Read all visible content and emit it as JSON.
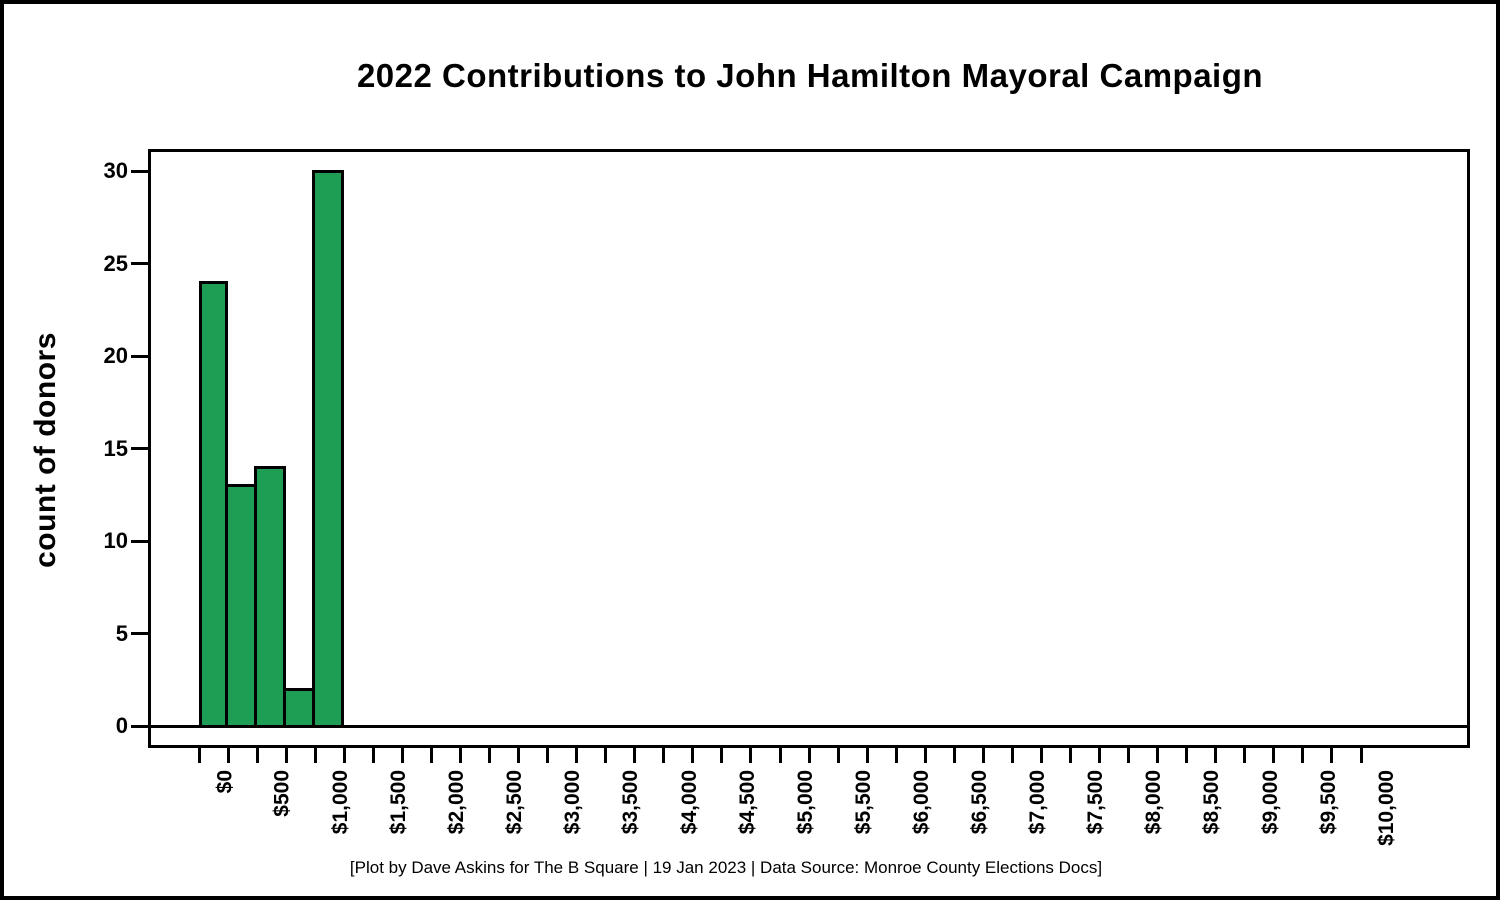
{
  "title": "2022 Contributions to John Hamilton Mayoral Campaign",
  "footer": "[Plot by Dave Askins for The B Square | 19 Jan 2023 | Data Source: Monroe County Elections Docs]",
  "y_axis": {
    "label": "count of donors",
    "ticks": [
      0,
      5,
      10,
      15,
      20,
      25,
      30
    ],
    "tick_labels": [
      "0",
      "5",
      "10",
      "15",
      "20",
      "25",
      "30"
    ]
  },
  "x_axis": {
    "min": 0,
    "max": 10000,
    "tick_step": 250,
    "label_step": 500,
    "labels": [
      "$0",
      "$500",
      "$1,000",
      "$1,500",
      "$2,000",
      "$2,500",
      "$3,000",
      "$3,500",
      "$4,000",
      "$4,500",
      "$5,000",
      "$5,500",
      "$6,000",
      "$6,500",
      "$7,000",
      "$7,500",
      "$8,000",
      "$8,500",
      "$9,000",
      "$9,500",
      "$10,000"
    ]
  },
  "colors": {
    "bar_fill": "#1e9e55",
    "bar_border": "#000000",
    "frame": "#000000",
    "text": "#000000",
    "background": "#ffffff"
  },
  "chart_data": {
    "type": "bar",
    "subtype": "histogram",
    "title": "2022 Contributions to John Hamilton Mayoral Campaign",
    "xlabel": "",
    "ylabel": "count of donors",
    "bin_width_dollars": 250,
    "bins": [
      {
        "range": "$0-$250",
        "count": 24
      },
      {
        "range": "$250-$500",
        "count": 13
      },
      {
        "range": "$500-$750",
        "count": 14
      },
      {
        "range": "$750-$1,000",
        "count": 2
      },
      {
        "range": "$1,000-$1,250",
        "count": 30
      }
    ],
    "xlim": [
      0,
      10000
    ],
    "ylim": [
      0,
      30
    ],
    "x_tick_step": 250,
    "x_label_step": 500,
    "y_ticks": [
      0,
      5,
      10,
      15,
      20,
      25,
      30
    ],
    "grid": false,
    "legend": false
  }
}
